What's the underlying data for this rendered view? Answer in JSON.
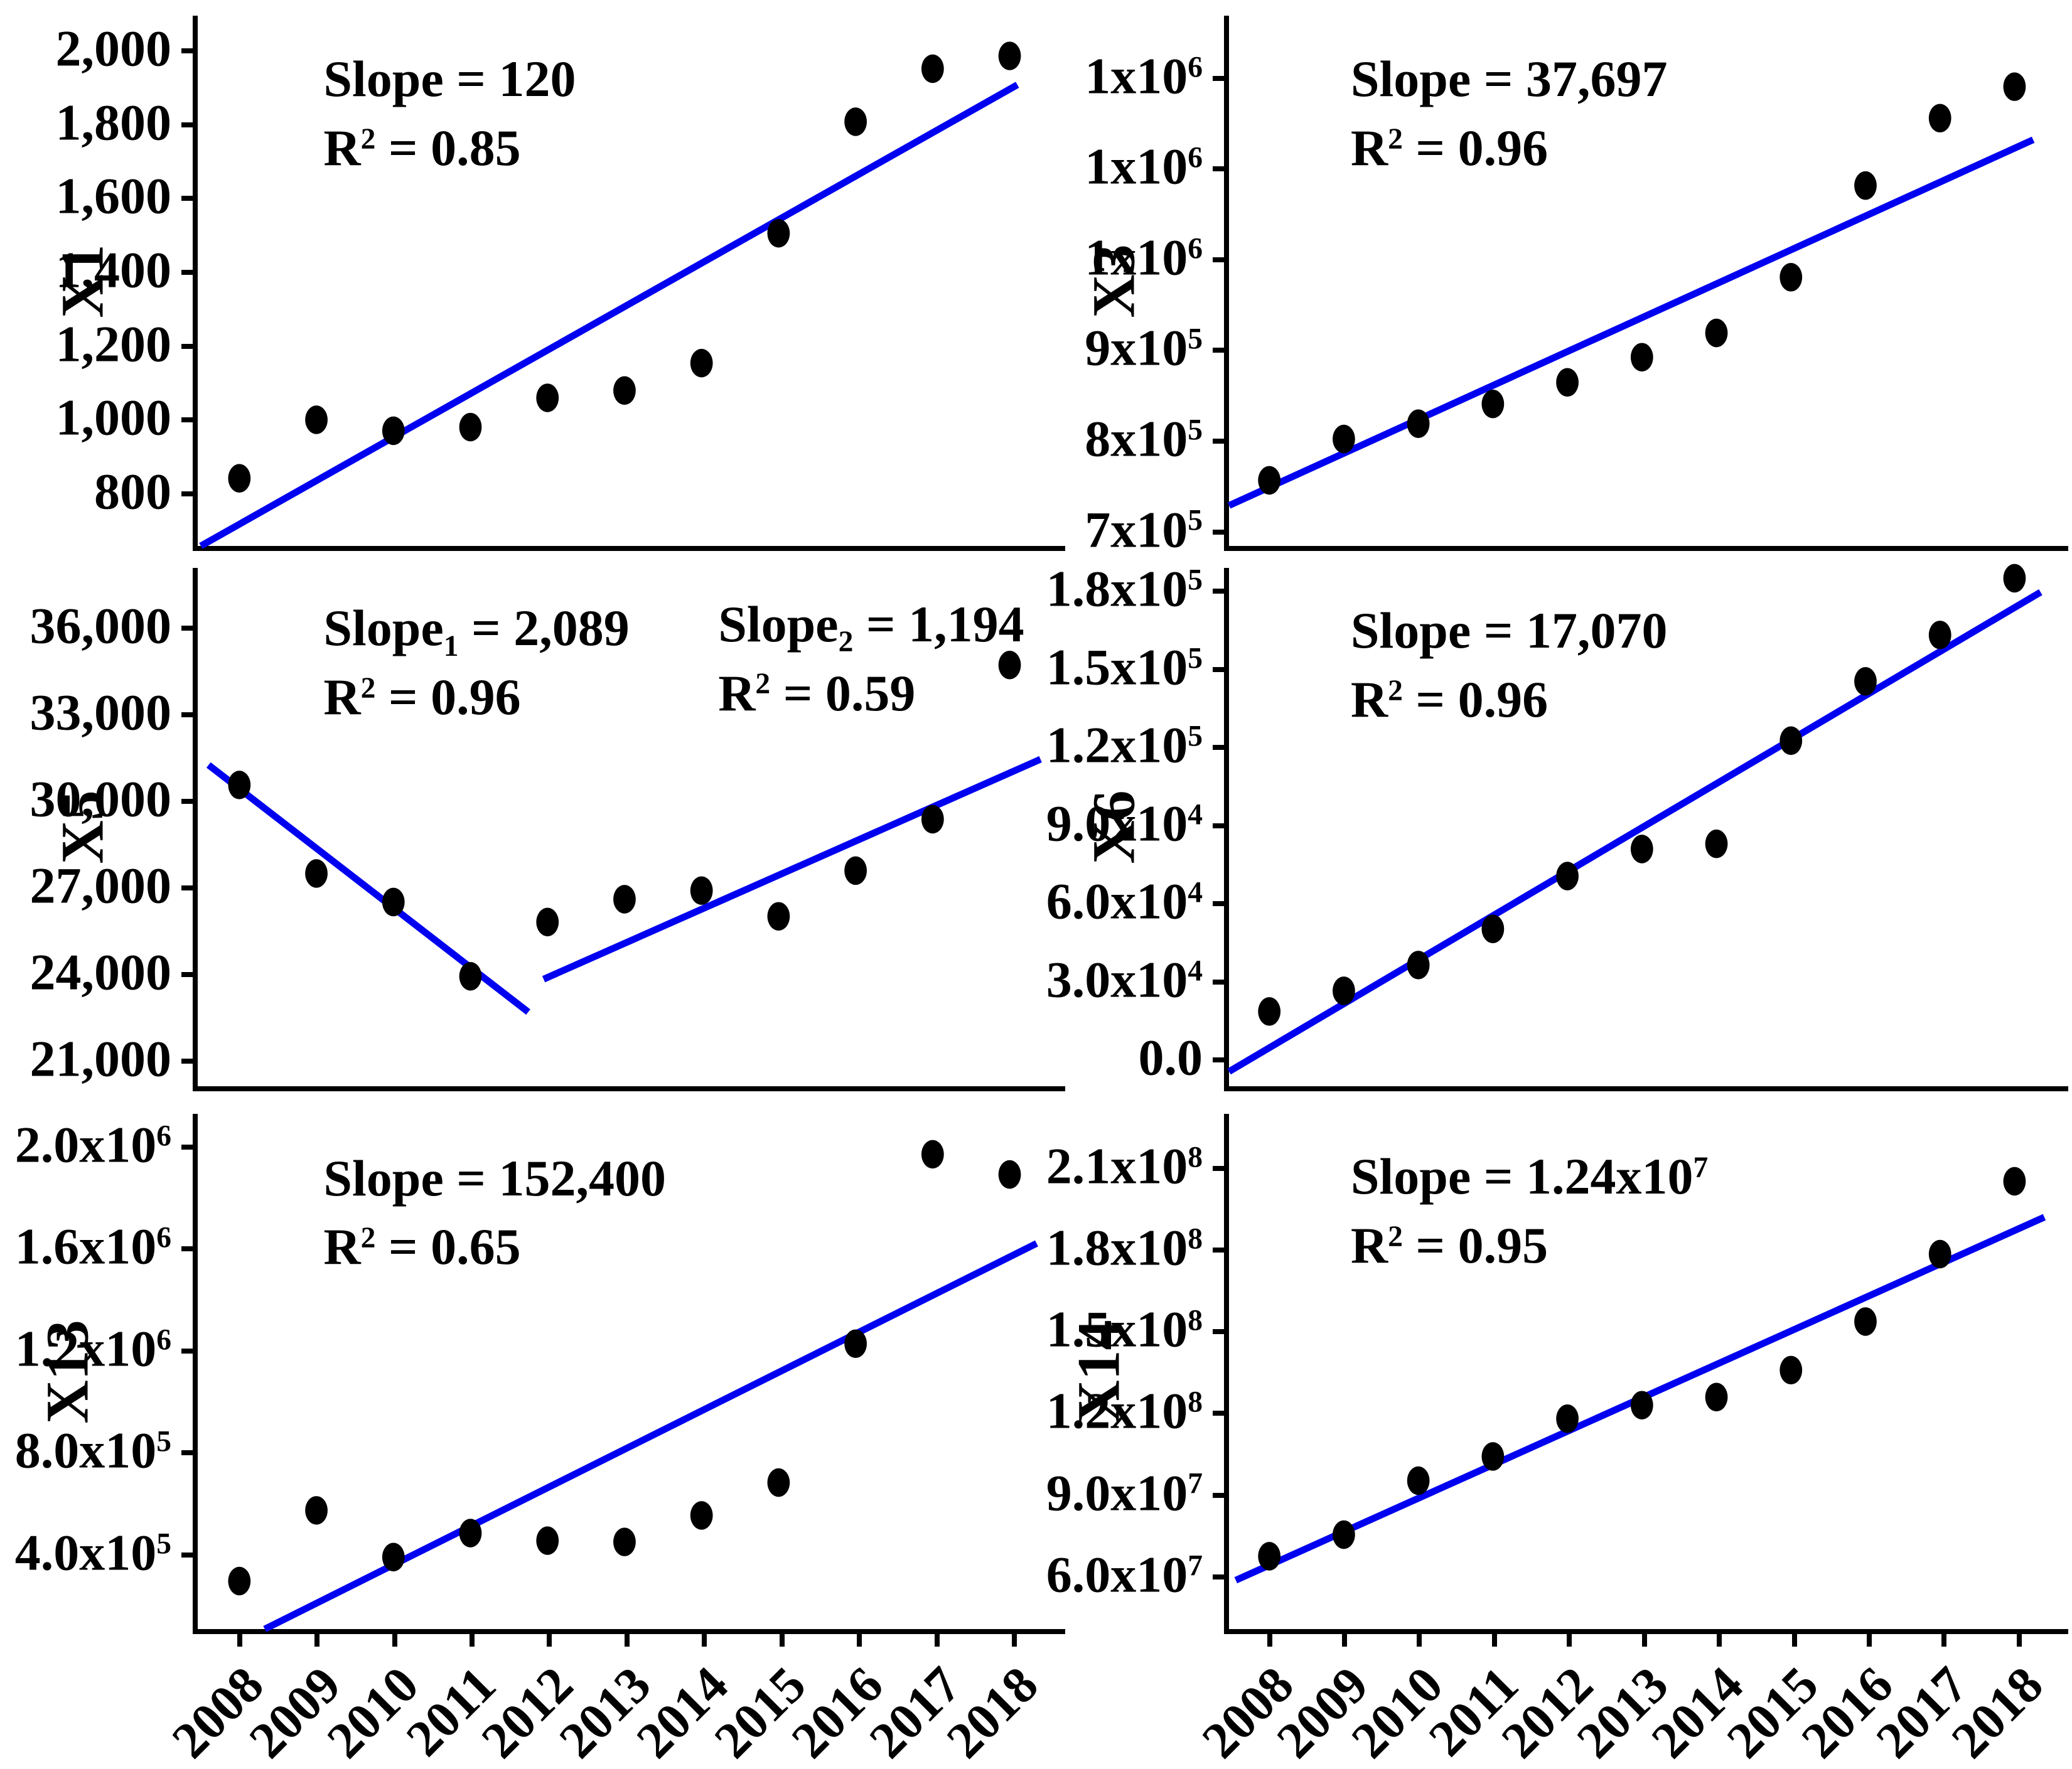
{
  "figure": {
    "background": "#ffffff",
    "line_color": "#0000f0",
    "dot_color": "#000000",
    "axis_color": "#000000"
  },
  "x_axis": {
    "years": [
      "2008",
      "2009",
      "2010",
      "2011",
      "2012",
      "2013",
      "2014",
      "2015",
      "2016",
      "2017",
      "2018"
    ]
  },
  "chart_data": [
    {
      "id": "X1",
      "type": "scatter",
      "title": "X1",
      "row": 0,
      "col": 0,
      "annotations": [
        {
          "x": 0.145,
          "y": 0.055,
          "lines": [
            "Slope = 120",
            "R^{2} = 0.85"
          ]
        }
      ],
      "ylim": [
        645,
        2095
      ],
      "yticks": [
        {
          "v": 2000,
          "label": "2,000"
        },
        {
          "v": 1800,
          "label": "1,800"
        },
        {
          "v": 1600,
          "label": "1,600"
        },
        {
          "v": 1400,
          "label": "1,400"
        },
        {
          "v": 1200,
          "label": "1,200"
        },
        {
          "v": 1000,
          "label": "1,000"
        },
        {
          "v": 800,
          "label": "800"
        }
      ],
      "values": [
        830,
        990,
        960,
        970,
        1050,
        1070,
        1145,
        1500,
        1805,
        1950,
        1985
      ],
      "fit_lines": [
        {
          "x1": 2007.5,
          "y1": 645,
          "x2": 2018.1,
          "y2": 1906
        }
      ]
    },
    {
      "id": "X3",
      "type": "scatter",
      "title": "X3",
      "row": 0,
      "col": 1,
      "annotations": [
        {
          "x": 0.145,
          "y": 0.055,
          "lines": [
            "Slope = 37,697",
            "R^{2} = 0.96"
          ]
        }
      ],
      "ylim": [
        679000,
        1269000
      ],
      "yticks": [
        {
          "v": 1200000,
          "label": "1x10^{6}"
        },
        {
          "v": 1100000,
          "label": "1x10^{6}"
        },
        {
          "v": 1000000,
          "label": "1x10^{6}"
        },
        {
          "v": 900000,
          "label": "9x10^{5}"
        },
        {
          "v": 800000,
          "label": "8x10^{5}"
        },
        {
          "v": 700000,
          "label": "7x10^{5}"
        }
      ],
      "values": [
        752000,
        798000,
        815000,
        837000,
        861000,
        889000,
        916000,
        978000,
        1080000,
        1155000,
        1190000
      ],
      "fit_lines": [
        {
          "x1": 2007.46,
          "y1": 724000,
          "x2": 2018.25,
          "y2": 1131000
        }
      ]
    },
    {
      "id": "X5",
      "type": "scatter",
      "title": "X5",
      "row": 1,
      "col": 0,
      "annotations": [
        {
          "x": 0.145,
          "y": 0.05,
          "lines": [
            "Slope_{1} = 2,089",
            "R^{2} = 0.96"
          ]
        },
        {
          "x": 0.6,
          "y": 0.042,
          "lines": [
            "Slope_{2} = 1,194",
            "R^{2} = 0.59"
          ]
        }
      ],
      "ylim": [
        19950,
        38100
      ],
      "yticks": [
        {
          "v": 36000,
          "label": "36,000"
        },
        {
          "v": 33000,
          "label": "33,000"
        },
        {
          "v": 30000,
          "label": "30,000"
        },
        {
          "v": 27000,
          "label": "27,000"
        },
        {
          "v": 24000,
          "label": "24,000"
        },
        {
          "v": 21000,
          "label": "21,000"
        }
      ],
      "values": [
        30500,
        27400,
        26400,
        23800,
        25700,
        26500,
        26800,
        25900,
        27500,
        29300,
        34700
      ],
      "fit_lines": [
        {
          "x1": 2007.6,
          "y1": 31200,
          "x2": 2011.75,
          "y2": 22550
        },
        {
          "x1": 2011.95,
          "y1": 23700,
          "x2": 2018.4,
          "y2": 31400
        }
      ]
    },
    {
      "id": "X6",
      "type": "scatter",
      "title": "X6",
      "row": 1,
      "col": 1,
      "annotations": [
        {
          "x": 0.145,
          "y": 0.055,
          "lines": [
            "Slope = 17,070",
            "R^{2} = 0.96"
          ]
        }
      ],
      "ylim": [
        -12000,
        189000
      ],
      "yticks": [
        {
          "v": 180000,
          "label": "1.8x10^{5}"
        },
        {
          "v": 150000,
          "label": "1.5x10^{5}"
        },
        {
          "v": 120000,
          "label": "1.2x10^{5}"
        },
        {
          "v": 90000,
          "label": "9.0x10^{4}"
        },
        {
          "v": 60000,
          "label": "6.0x10^{4}"
        },
        {
          "v": 30000,
          "label": "3.0x10^{4}"
        },
        {
          "v": 0,
          "label": "0.0"
        }
      ],
      "values": [
        17000,
        25000,
        35000,
        49000,
        69500,
        80000,
        82000,
        122000,
        145000,
        163000,
        185000
      ],
      "fit_lines": [
        {
          "x1": 2007.46,
          "y1": -6300,
          "x2": 2018.35,
          "y2": 179600
        }
      ]
    },
    {
      "id": "X13",
      "type": "scatter",
      "title": "X13",
      "row": 2,
      "col": 0,
      "annotations": [
        {
          "x": 0.145,
          "y": 0.058,
          "lines": [
            "Slope = 152,400",
            "R^{2} = 0.65"
          ]
        }
      ],
      "ylim": [
        90000,
        2130000
      ],
      "yticks": [
        {
          "v": 2000000,
          "label": "2.0x10^{6}"
        },
        {
          "v": 1600000,
          "label": "1.6x10^{6}"
        },
        {
          "v": 1200000,
          "label": "1.2x10^{6}"
        },
        {
          "v": 800000,
          "label": "8.0x10^{5}"
        },
        {
          "v": 400000,
          "label": "4.0x10^{5}"
        }
      ],
      "values": [
        280000,
        560000,
        375000,
        470000,
        440000,
        435000,
        540000,
        670000,
        1220000,
        1970000,
        1890000
      ],
      "fit_lines": [
        {
          "x1": 2008.33,
          "y1": 90000,
          "x2": 2018.35,
          "y2": 1617000
        }
      ]
    },
    {
      "id": "X14",
      "type": "scatter",
      "title": "X14",
      "row": 2,
      "col": 1,
      "annotations": [
        {
          "x": 0.145,
          "y": 0.055,
          "lines": [
            "Slope = 1.24x10^{7}",
            "R^{2} = 0.95"
          ]
        }
      ],
      "ylim": [
        39000000,
        230000000
      ],
      "yticks": [
        {
          "v": 210000000,
          "label": "2.1x10^{8}"
        },
        {
          "v": 180000000,
          "label": "1.8x10^{8}"
        },
        {
          "v": 150000000,
          "label": "1.5x10^{8}"
        },
        {
          "v": 120000000,
          "label": "1.2x10^{8}"
        },
        {
          "v": 90000000,
          "label": "9.0x10^{7}"
        },
        {
          "v": 60000000,
          "label": "6.0x10^{7}"
        }
      ],
      "values": [
        66000000,
        74000000,
        94000000,
        103000000,
        117000000,
        122000000,
        125000000,
        135000000,
        153000000,
        178000000,
        205000000
      ],
      "fit_lines": [
        {
          "x1": 2007.55,
          "y1": 57100000,
          "x2": 2018.4,
          "y2": 191700000
        }
      ]
    }
  ]
}
